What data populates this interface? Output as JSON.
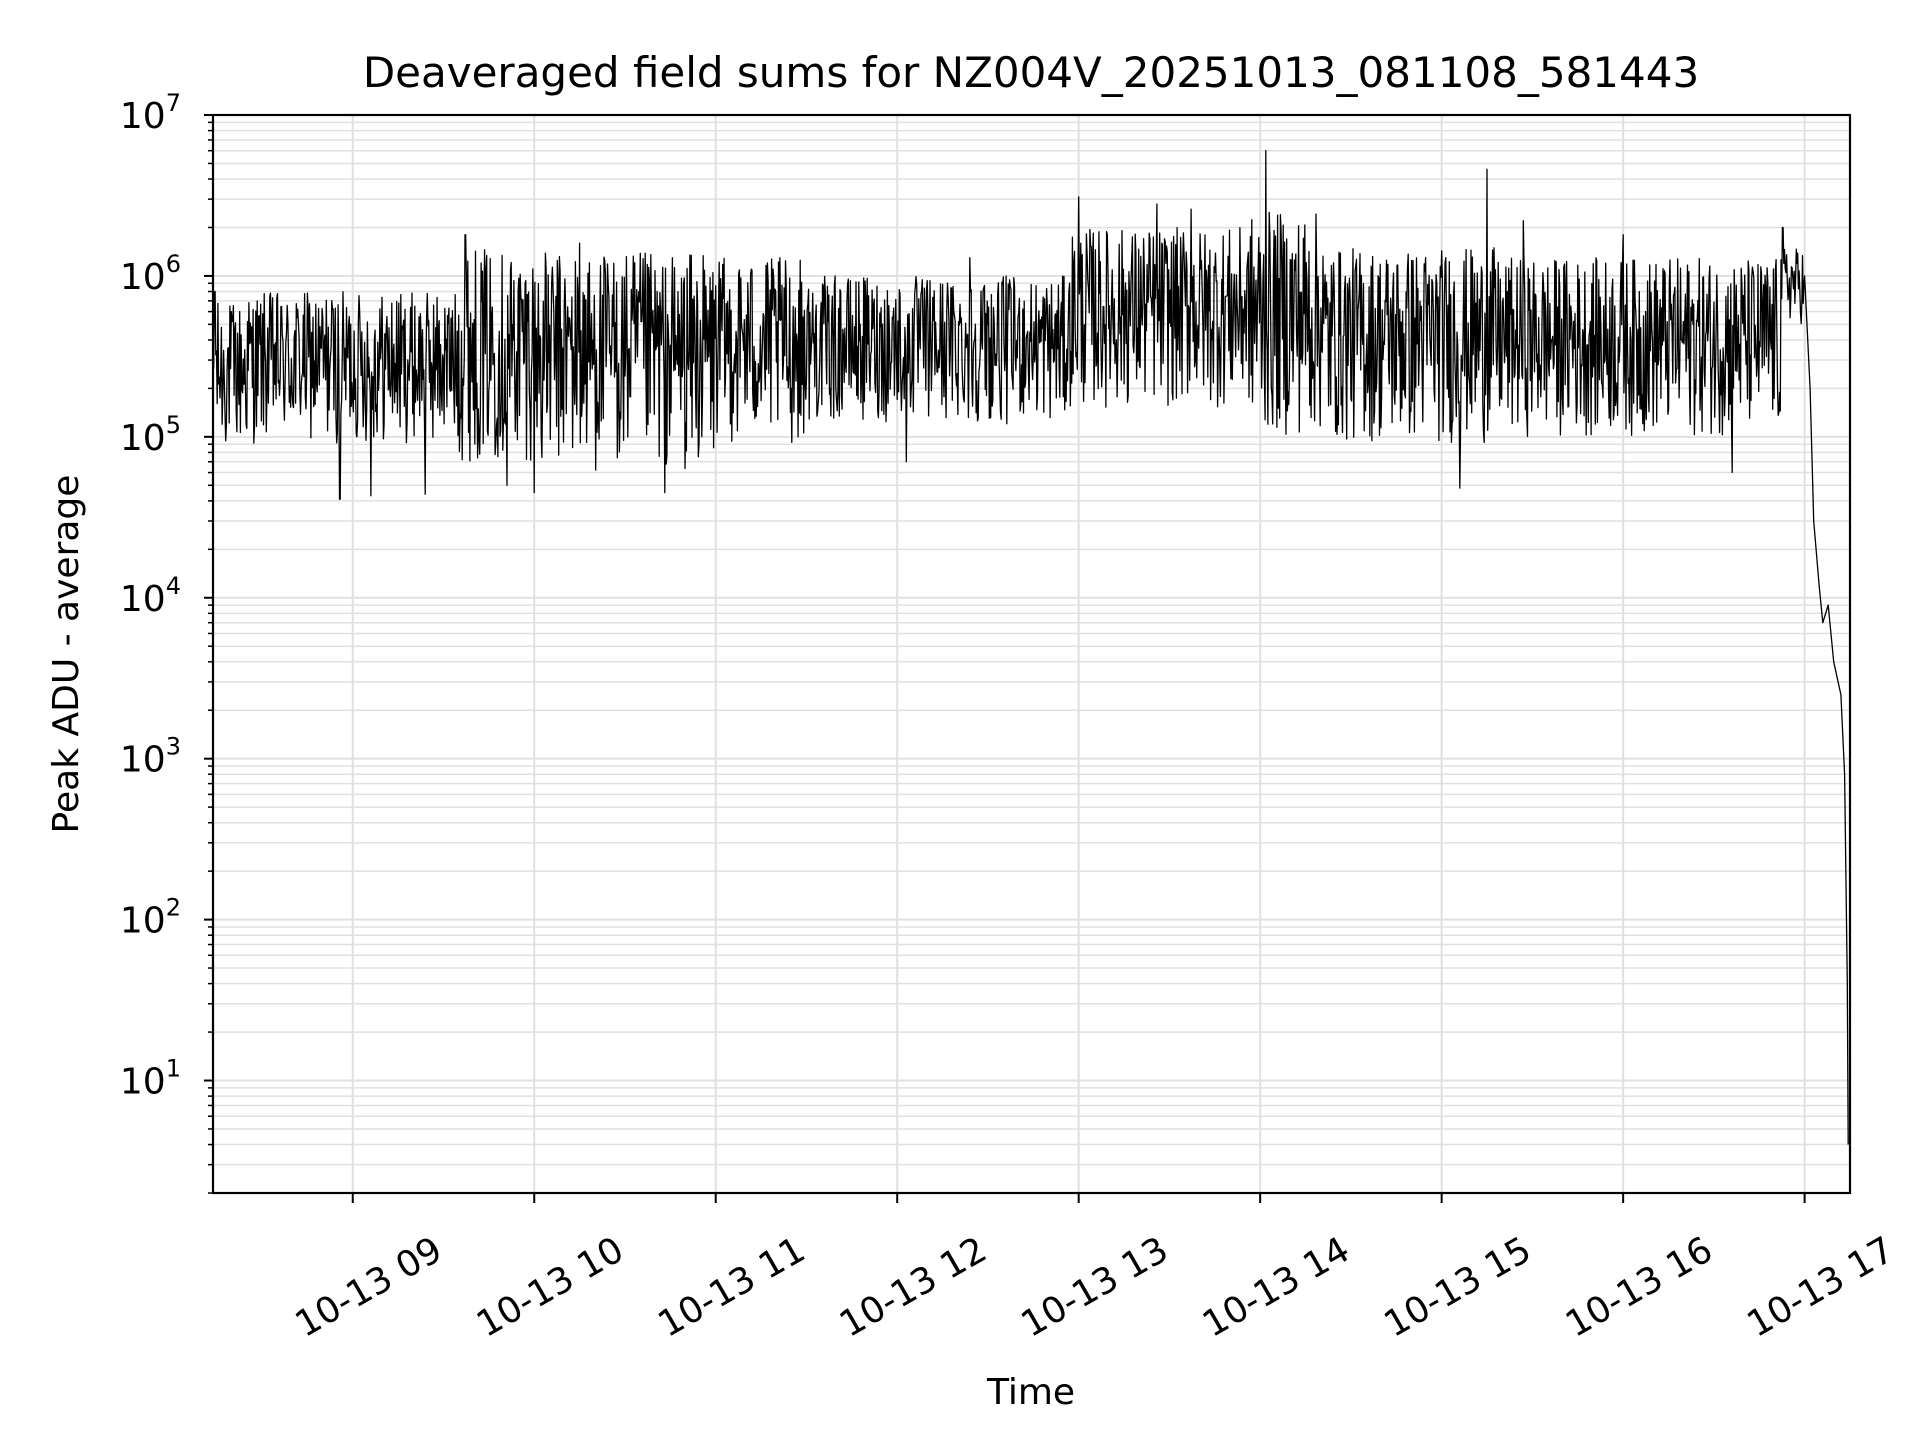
{
  "chart_data": {
    "type": "line",
    "title": "Deaveraged field sums for NZ004V_20251013_081108_581443",
    "xlabel": "Time",
    "ylabel": "Peak ADU - average",
    "yscale": "log",
    "ylim": [
      2,
      10000000
    ],
    "xlim_hours": [
      8.23,
      17.25
    ],
    "grid": true,
    "line_color": "#000000",
    "grid_color": "#e0e0e0",
    "x_ticks": [
      {
        "hour": 9,
        "label": "10-13 09"
      },
      {
        "hour": 10,
        "label": "10-13 10"
      },
      {
        "hour": 11,
        "label": "10-13 11"
      },
      {
        "hour": 12,
        "label": "10-13 12"
      },
      {
        "hour": 13,
        "label": "10-13 13"
      },
      {
        "hour": 14,
        "label": "10-13 14"
      },
      {
        "hour": 15,
        "label": "10-13 15"
      },
      {
        "hour": 16,
        "label": "10-13 16"
      },
      {
        "hour": 17,
        "label": "10-13 17"
      }
    ],
    "y_ticks": [
      {
        "value": 10,
        "base": "10",
        "exp": "1"
      },
      {
        "value": 100,
        "base": "10",
        "exp": "2"
      },
      {
        "value": 1000,
        "base": "10",
        "exp": "3"
      },
      {
        "value": 10000,
        "base": "10",
        "exp": "4"
      },
      {
        "value": 100000,
        "base": "10",
        "exp": "5"
      },
      {
        "value": 1000000,
        "base": "10",
        "exp": "6"
      },
      {
        "value": 10000000,
        "base": "10",
        "exp": "7"
      }
    ],
    "series": [
      {
        "name": "Peak ADU - average",
        "envelope": [
          {
            "start": 8.23,
            "end": 8.42,
            "lo": 80000,
            "hi": 700000,
            "spikes": [
              [
                8.24,
                800000
              ]
            ]
          },
          {
            "start": 8.42,
            "end": 9.58,
            "lo": 90000,
            "hi": 800000,
            "spikes": [
              [
                8.93,
                41000
              ],
              [
                9.1,
                43000
              ],
              [
                9.4,
                44000
              ]
            ]
          },
          {
            "start": 9.58,
            "end": 10.0,
            "lo": 70000,
            "hi": 1500000,
            "spikes": [
              [
                9.62,
                1800000
              ],
              [
                9.85,
                50000
              ]
            ]
          },
          {
            "start": 10.0,
            "end": 11.0,
            "lo": 60000,
            "hi": 1400000,
            "spikes": [
              [
                10.0,
                45000
              ],
              [
                10.25,
                1600000
              ],
              [
                10.72,
                45000
              ]
            ]
          },
          {
            "start": 11.0,
            "end": 11.5,
            "lo": 90000,
            "hi": 1300000,
            "spikes": []
          },
          {
            "start": 11.5,
            "end": 12.95,
            "lo": 120000,
            "hi": 1000000,
            "spikes": [
              [
                12.05,
                70000
              ],
              [
                12.4,
                1300000
              ]
            ]
          },
          {
            "start": 12.95,
            "end": 13.95,
            "lo": 150000,
            "hi": 2000000,
            "spikes": [
              [
                13.0,
                3100000
              ],
              [
                13.43,
                2800000
              ],
              [
                13.62,
                2600000
              ]
            ]
          },
          {
            "start": 13.95,
            "end": 14.35,
            "lo": 100000,
            "hi": 2500000,
            "spikes": [
              [
                14.03,
                6000000
              ],
              [
                14.37,
                5000000
              ],
              [
                14.45,
                60000
              ]
            ]
          },
          {
            "start": 14.35,
            "end": 15.3,
            "lo": 90000,
            "hi": 1500000,
            "spikes": [
              [
                15.1,
                48000
              ],
              [
                15.25,
                4600000
              ]
            ]
          },
          {
            "start": 15.3,
            "end": 16.87,
            "lo": 100000,
            "hi": 1300000,
            "spikes": [
              [
                15.45,
                2200000
              ],
              [
                16.0,
                1800000
              ],
              [
                16.6,
                60000
              ]
            ]
          },
          {
            "start": 16.87,
            "end": 17.0,
            "lo": 500000,
            "hi": 1500000,
            "spikes": [
              [
                16.88,
                2000000
              ]
            ]
          }
        ],
        "tail": [
          [
            17.0,
            1000000
          ],
          [
            17.03,
            200000
          ],
          [
            17.05,
            30000
          ],
          [
            17.08,
            12000
          ],
          [
            17.1,
            7000
          ],
          [
            17.13,
            9000
          ],
          [
            17.16,
            4000
          ],
          [
            17.2,
            2500
          ],
          [
            17.22,
            800
          ],
          [
            17.235,
            40
          ],
          [
            17.24,
            4
          ]
        ]
      }
    ]
  }
}
